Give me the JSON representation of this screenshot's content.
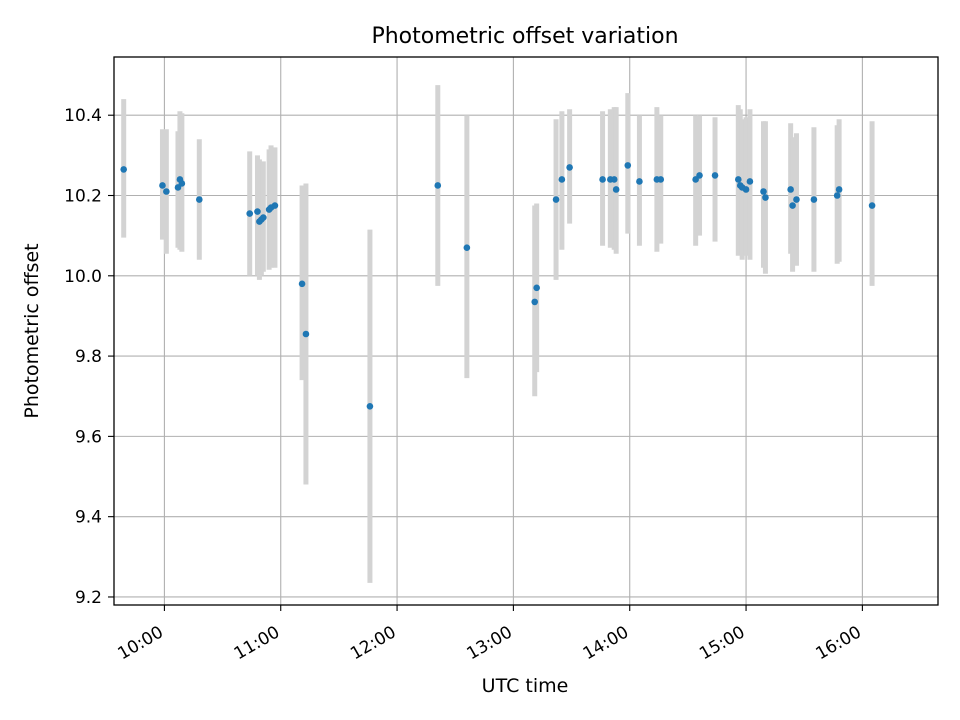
{
  "chart_data": {
    "type": "scatter",
    "title": "Photometric offset variation",
    "xlabel": "UTC time",
    "ylabel": "Photometric offset",
    "xlim": [
      "09:34",
      "16:39"
    ],
    "ylim": [
      9.18,
      10.545
    ],
    "grid": true,
    "x_ticks": [
      "10:00",
      "11:00",
      "12:00",
      "13:00",
      "14:00",
      "15:00",
      "16:00"
    ],
    "y_ticks": [
      "9.2",
      "9.4",
      "9.6",
      "9.8",
      "10.0",
      "10.2",
      "10.4"
    ],
    "colors": {
      "points": "#1f77b4",
      "error_bars": "#d3d3d3",
      "grid": "#b0b0b0"
    },
    "series": [
      {
        "x": [
          "09:39",
          "09:59",
          "10:01",
          "10:07",
          "10:08",
          "10:09",
          "10:18",
          "10:44",
          "10:48",
          "10:49",
          "10:50",
          "10:51",
          "10:54",
          "10:55",
          "10:57",
          "11:11",
          "11:13",
          "11:46",
          "12:21",
          "12:36",
          "13:11",
          "13:12",
          "13:22",
          "13:25",
          "13:29",
          "13:46",
          "13:50",
          "13:52",
          "13:53",
          "13:59",
          "14:05",
          "14:14",
          "14:16",
          "14:34",
          "14:36",
          "14:44",
          "14:56",
          "14:57",
          "14:58",
          "15:00",
          "15:02",
          "15:09",
          "15:10",
          "15:23",
          "15:24",
          "15:26",
          "15:35",
          "15:47",
          "15:48",
          "16:05"
        ],
        "y": [
          10.265,
          10.225,
          10.21,
          10.22,
          10.24,
          10.23,
          10.19,
          10.155,
          10.16,
          10.135,
          10.14,
          10.145,
          10.165,
          10.17,
          10.175,
          9.98,
          9.855,
          9.675,
          10.225,
          10.07,
          9.935,
          9.97,
          10.19,
          10.24,
          10.27,
          10.24,
          10.24,
          10.24,
          10.215,
          10.275,
          10.235,
          10.24,
          10.24,
          10.24,
          10.25,
          10.25,
          10.24,
          10.225,
          10.22,
          10.215,
          10.235,
          10.21,
          10.195,
          10.215,
          10.175,
          10.19,
          10.19,
          10.2,
          10.215,
          10.175
        ],
        "yerr_low": [
          10.095,
          10.09,
          10.055,
          10.07,
          10.065,
          10.06,
          10.04,
          10.0,
          10.0,
          9.99,
          10.0,
          10.01,
          10.015,
          10.02,
          10.02,
          9.74,
          9.48,
          9.235,
          9.975,
          9.745,
          9.7,
          9.76,
          9.99,
          10.065,
          10.13,
          10.075,
          10.07,
          10.065,
          10.055,
          10.105,
          10.075,
          10.06,
          10.08,
          10.075,
          10.1,
          10.085,
          10.05,
          10.06,
          10.04,
          10.05,
          10.04,
          10.02,
          10.005,
          10.055,
          10.01,
          10.025,
          10.01,
          10.03,
          10.035,
          9.975
        ],
        "yerr_high": [
          10.44,
          10.365,
          10.365,
          10.36,
          10.41,
          10.405,
          10.34,
          10.31,
          10.3,
          10.29,
          10.28,
          10.285,
          10.315,
          10.325,
          10.32,
          10.225,
          10.23,
          10.115,
          10.475,
          10.4,
          10.175,
          10.18,
          10.39,
          10.41,
          10.415,
          10.41,
          10.415,
          10.42,
          10.42,
          10.455,
          10.4,
          10.42,
          10.4,
          10.4,
          10.4,
          10.395,
          10.425,
          10.415,
          10.39,
          10.395,
          10.415,
          10.385,
          10.385,
          10.38,
          10.345,
          10.355,
          10.37,
          10.375,
          10.39,
          10.385
        ]
      }
    ]
  }
}
